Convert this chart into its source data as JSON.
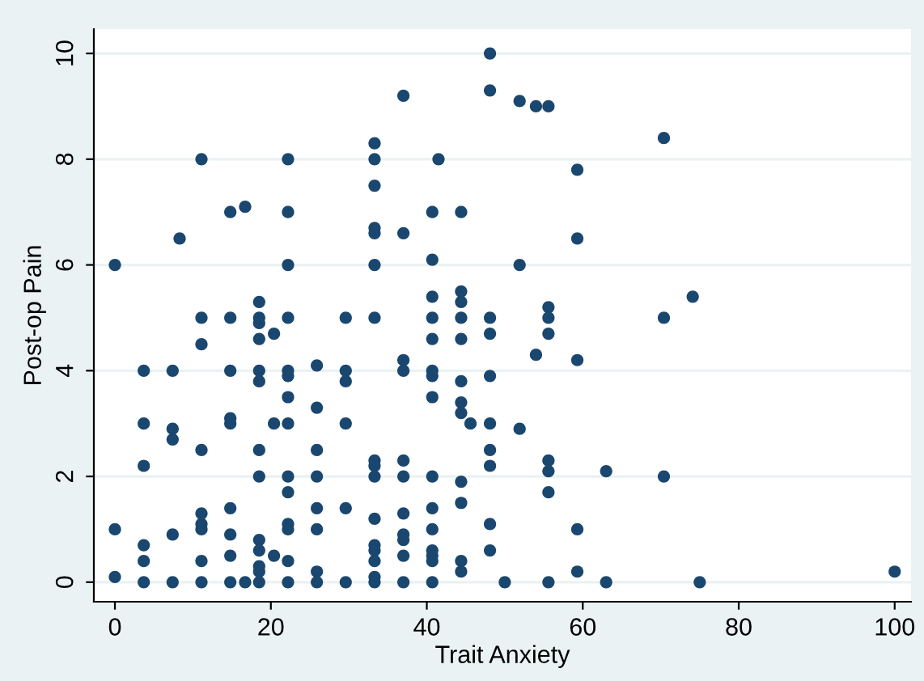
{
  "chart_data": {
    "type": "scatter",
    "xlabel": "Trait Anxiety",
    "ylabel": "Post-op Pain",
    "xlim": [
      -2.7,
      102.1
    ],
    "ylim": [
      -0.37,
      10.46
    ],
    "xticks": [
      0,
      20,
      40,
      60,
      80,
      100
    ],
    "yticks": [
      0,
      2,
      4,
      6,
      8,
      10
    ],
    "grid": "y",
    "marker": "circle",
    "legend": false,
    "series": [
      {
        "color": "#1a476f",
        "x": [
          0,
          0,
          0,
          3.7,
          3.7,
          3.7,
          3.7,
          3.7,
          3.7,
          7.4,
          7.4,
          7.4,
          7.4,
          7.4,
          8.3,
          11.1,
          11.1,
          11.1,
          11.1,
          11.1,
          11.1,
          11.1,
          11.1,
          11.1,
          14.8,
          14.8,
          14.8,
          14.8,
          14.8,
          14.8,
          14.8,
          14.8,
          14.8,
          16.7,
          16.7,
          18.5,
          18.5,
          18.5,
          18.5,
          18.5,
          18.5,
          18.5,
          18.5,
          18.5,
          18.5,
          18.5,
          18.5,
          18.5,
          20.4,
          20.4,
          20.4,
          22.2,
          22.2,
          22.2,
          22.2,
          22.2,
          22.2,
          22.2,
          22.2,
          22.2,
          22.2,
          22.2,
          22.2,
          22.2,
          22.2,
          25.9,
          25.9,
          25.9,
          25.9,
          25.9,
          25.9,
          25.9,
          25.9,
          29.6,
          29.6,
          29.6,
          29.6,
          29.6,
          29.6,
          33.3,
          33.3,
          33.3,
          33.3,
          33.3,
          33.3,
          33.3,
          33.3,
          33.3,
          33.3,
          33.3,
          33.3,
          33.3,
          33.3,
          33.3,
          33.3,
          37,
          37,
          37,
          37,
          37,
          37,
          37,
          37,
          37,
          37,
          37,
          40.7,
          40.7,
          40.7,
          40.7,
          40.7,
          40.7,
          40.7,
          40.7,
          40.7,
          40.7,
          40.7,
          40.7,
          40.7,
          40.7,
          40.7,
          41.5,
          44.4,
          44.4,
          44.4,
          44.4,
          44.4,
          44.4,
          44.4,
          44.4,
          44.4,
          44.4,
          44.4,
          44.4,
          45.6,
          48.1,
          48.1,
          48.1,
          48.1,
          48.1,
          48.1,
          48.1,
          48.1,
          48.1,
          48.1,
          50,
          51.9,
          51.9,
          51.9,
          54,
          54,
          55.6,
          55.6,
          55.6,
          55.6,
          55.6,
          55.6,
          55.6,
          55.6,
          59.3,
          59.3,
          59.3,
          59.3,
          59.3,
          63,
          63,
          70.4,
          70.4,
          70.4,
          74.1,
          75,
          100
        ],
        "values": [
          6.0,
          1.0,
          0.1,
          4.0,
          3.0,
          2.2,
          0.7,
          0.4,
          0,
          4.0,
          2.9,
          2.7,
          0.9,
          0,
          6.5,
          8.0,
          5.0,
          4.5,
          2.5,
          1.3,
          1.1,
          1.0,
          0.4,
          0,
          7.0,
          5.0,
          4.0,
          3.1,
          3.0,
          1.4,
          0.9,
          0.5,
          0,
          7.1,
          0,
          5.3,
          5.0,
          4.9,
          4.6,
          4.0,
          3.8,
          2.5,
          2.0,
          0.8,
          0.6,
          0.3,
          0.2,
          0,
          4.7,
          3.0,
          0.5,
          8.0,
          7.0,
          6.0,
          5.0,
          4.0,
          3.9,
          3.5,
          3.0,
          2.0,
          1.7,
          1.1,
          1.0,
          0.4,
          0,
          4.1,
          3.3,
          2.5,
          2.0,
          1.4,
          1.0,
          0.2,
          0,
          5.0,
          4.0,
          3.8,
          3.0,
          1.4,
          0,
          8.3,
          8.0,
          7.5,
          6.7,
          6.6,
          6.0,
          5.0,
          2.3,
          2.2,
          2.0,
          1.2,
          0.7,
          0.6,
          0.4,
          0.1,
          0,
          9.2,
          6.6,
          4.2,
          4.0,
          2.3,
          2.0,
          1.3,
          0.9,
          0.8,
          0.5,
          0,
          7.0,
          6.1,
          5.4,
          5.0,
          4.6,
          4.0,
          3.9,
          3.5,
          2.0,
          1.4,
          1.0,
          0.6,
          0.5,
          0.4,
          0,
          8.0,
          7.0,
          5.5,
          5.3,
          5.0,
          4.6,
          3.8,
          3.4,
          3.2,
          1.9,
          1.5,
          0.4,
          0.2,
          3.0,
          10.0,
          9.3,
          5.0,
          4.7,
          3.9,
          3.0,
          2.5,
          2.2,
          1.1,
          0.6,
          0,
          9.1,
          6.0,
          2.9,
          9.0,
          4.3,
          9.0,
          5.2,
          5.0,
          4.7,
          2.3,
          2.1,
          1.7,
          0,
          7.8,
          6.5,
          4.2,
          1.0,
          0.2,
          2.1,
          0,
          8.4,
          5.0,
          2.0,
          5.4,
          0,
          0.2
        ]
      }
    ]
  }
}
